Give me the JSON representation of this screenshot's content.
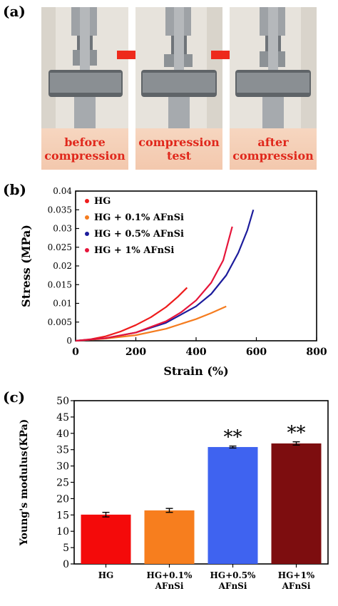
{
  "panel_labels": {
    "a": "(a)",
    "b": "(b)",
    "c": "(c)"
  },
  "photos": [
    {
      "caption_line1": "before",
      "caption_line2": "compression"
    },
    {
      "caption_line1": "compression",
      "caption_line2": "test"
    },
    {
      "caption_line1": "after",
      "caption_line2": "compression"
    }
  ],
  "colors": {
    "caption_text": "#e0281c",
    "arrow": "#ee2a1c"
  },
  "chart_data": [
    {
      "type": "line",
      "xlabel": "Strain (%)",
      "ylabel": "Stress (MPa)",
      "xlim": [
        0,
        800
      ],
      "ylim": [
        0,
        0.04
      ],
      "x_ticks": [
        "0",
        "200",
        "400",
        "600",
        "800"
      ],
      "y_ticks": [
        "0",
        "0.005",
        "0.01",
        "0.015",
        "0.02",
        "0.025",
        "0.03",
        "0.035",
        "0.04"
      ],
      "legend_position": "top-left",
      "series": [
        {
          "name": "HG",
          "color": "#ee1c1c",
          "x": [
            0,
            50,
            100,
            150,
            200,
            250,
            300,
            340,
            370
          ],
          "y": [
            0,
            0.0004,
            0.0012,
            0.0025,
            0.0042,
            0.0063,
            0.009,
            0.0118,
            0.0142
          ]
        },
        {
          "name": "HG + 0.1% AFnSi",
          "color": "#f57c1f",
          "x": [
            0,
            100,
            200,
            300,
            400,
            450,
            500
          ],
          "y": [
            0,
            0.0006,
            0.0015,
            0.0032,
            0.0058,
            0.0074,
            0.0092
          ]
        },
        {
          "name": "HG + 0.5% AFnSi",
          "color": "#1c1c9c",
          "x": [
            0,
            100,
            200,
            300,
            400,
            450,
            500,
            540,
            570,
            590
          ],
          "y": [
            0,
            0.0007,
            0.0022,
            0.0048,
            0.0092,
            0.0125,
            0.0175,
            0.0235,
            0.0295,
            0.035
          ]
        },
        {
          "name": "HG + 1% AFnSi",
          "color": "#e6153a",
          "x": [
            0,
            100,
            200,
            300,
            350,
            400,
            450,
            490,
            520
          ],
          "y": [
            0,
            0.0007,
            0.0022,
            0.0052,
            0.0076,
            0.0108,
            0.0155,
            0.0215,
            0.0305
          ]
        }
      ]
    },
    {
      "type": "bar",
      "ylabel": "Young's modulus(KPa)",
      "ylim": [
        0,
        50
      ],
      "y_ticks": [
        "0",
        "5",
        "10",
        "15",
        "20",
        "25",
        "30",
        "35",
        "40",
        "45",
        "50"
      ],
      "categories": [
        [
          "HG"
        ],
        [
          "HG+0.1%",
          "AFnSi"
        ],
        [
          "HG+0.5%",
          "AFnSi"
        ],
        [
          "HG+1%",
          "AFnSi"
        ]
      ],
      "values": [
        15.1,
        16.4,
        35.8,
        36.9
      ],
      "errors": [
        0.7,
        0.6,
        0.3,
        0.5
      ],
      "colors": [
        "#f40a0a",
        "#f77e1e",
        "#3f63f0",
        "#7d0d0f"
      ],
      "annotations": [
        "",
        "",
        "**",
        "**"
      ]
    }
  ]
}
